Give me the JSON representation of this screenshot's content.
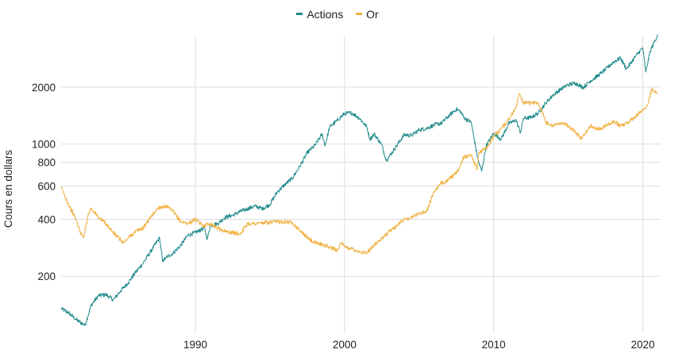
{
  "chart_data": {
    "type": "line",
    "title": "",
    "xlabel": "",
    "ylabel": "Cours en dollars",
    "y_scale": "log",
    "xlim": [
      1981,
      2021.2
    ],
    "ylim": [
      100,
      4000
    ],
    "x_ticks": [
      1990,
      2000,
      2010,
      2020
    ],
    "y_ticks": [
      200,
      400,
      600,
      800,
      1000,
      2000
    ],
    "grid": true,
    "legend": {
      "position": "top-center"
    },
    "series": [
      {
        "name": "Actions",
        "color": "#1f8a8a",
        "x": [
          1981.0,
          1981.5,
          1982.0,
          1982.6,
          1983.0,
          1983.5,
          1984.0,
          1984.5,
          1985.0,
          1985.5,
          1986.0,
          1986.5,
          1987.0,
          1987.6,
          1987.8,
          1988.0,
          1988.5,
          1989.0,
          1989.5,
          1990.0,
          1990.6,
          1990.8,
          1991.0,
          1991.5,
          1992.0,
          1992.5,
          1993.0,
          1993.5,
          1994.0,
          1994.5,
          1995.0,
          1995.5,
          1996.0,
          1996.5,
          1997.0,
          1997.5,
          1998.0,
          1998.5,
          1998.7,
          1999.0,
          1999.5,
          2000.0,
          2000.5,
          2001.0,
          2001.5,
          2001.7,
          2002.0,
          2002.5,
          2002.8,
          2003.0,
          2003.5,
          2004.0,
          2004.5,
          2005.0,
          2005.5,
          2006.0,
          2006.5,
          2007.0,
          2007.5,
          2007.8,
          2008.0,
          2008.5,
          2008.8,
          2009.0,
          2009.2,
          2009.5,
          2010.0,
          2010.5,
          2011.0,
          2011.5,
          2011.8,
          2012.0,
          2012.5,
          2013.0,
          2013.5,
          2014.0,
          2014.5,
          2015.0,
          2015.5,
          2016.0,
          2016.5,
          2017.0,
          2017.5,
          2018.0,
          2018.5,
          2018.9,
          2019.0,
          2019.5,
          2020.0,
          2020.2,
          2020.5,
          2021.0
        ],
        "values": [
          135,
          128,
          118,
          110,
          140,
          158,
          160,
          150,
          168,
          185,
          210,
          235,
          270,
          320,
          240,
          250,
          265,
          290,
          330,
          340,
          360,
          315,
          370,
          380,
          410,
          420,
          440,
          455,
          470,
          455,
          480,
          560,
          610,
          660,
          760,
          900,
          980,
          1130,
          980,
          1230,
          1330,
          1450,
          1460,
          1370,
          1230,
          1060,
          1130,
          990,
          820,
          860,
          980,
          1120,
          1110,
          1190,
          1210,
          1260,
          1290,
          1410,
          1530,
          1480,
          1380,
          1300,
          950,
          800,
          720,
          980,
          1140,
          1060,
          1280,
          1340,
          1150,
          1370,
          1380,
          1460,
          1650,
          1820,
          1950,
          2060,
          2100,
          1990,
          2160,
          2300,
          2480,
          2700,
          2850,
          2500,
          2550,
          2900,
          3230,
          2400,
          3100,
          3800
        ]
      },
      {
        "name": "Or",
        "color": "#f0b040",
        "x": [
          1981.0,
          1981.3,
          1981.6,
          1982.0,
          1982.3,
          1982.5,
          1982.8,
          1983.0,
          1983.5,
          1984.0,
          1984.5,
          1985.0,
          1985.2,
          1985.5,
          1986.0,
          1986.5,
          1987.0,
          1987.5,
          1988.0,
          1988.5,
          1989.0,
          1989.5,
          1990.0,
          1990.5,
          1991.0,
          1991.5,
          1992.0,
          1992.5,
          1993.0,
          1993.5,
          1994.0,
          1995.0,
          1996.0,
          1996.5,
          1997.0,
          1997.5,
          1998.0,
          1998.5,
          1999.0,
          1999.5,
          1999.8,
          2000.0,
          2000.5,
          2001.0,
          2001.5,
          2002.0,
          2002.5,
          2003.0,
          2003.5,
          2004.0,
          2004.5,
          2005.0,
          2005.5,
          2006.0,
          2006.5,
          2007.0,
          2007.5,
          2008.0,
          2008.5,
          2008.9,
          2009.0,
          2009.5,
          2010.0,
          2010.5,
          2011.0,
          2011.5,
          2011.7,
          2012.0,
          2012.5,
          2013.0,
          2013.3,
          2013.5,
          2014.0,
          2014.5,
          2015.0,
          2015.5,
          2015.9,
          2016.0,
          2016.5,
          2017.0,
          2017.5,
          2018.0,
          2018.5,
          2019.0,
          2019.5,
          2020.0,
          2020.3,
          2020.6,
          2021.0
        ],
        "values": [
          590,
          520,
          460,
          400,
          340,
          320,
          420,
          460,
          410,
          380,
          340,
          310,
          300,
          320,
          345,
          360,
          410,
          460,
          470,
          440,
          390,
          380,
          400,
          370,
          380,
          360,
          345,
          340,
          335,
          380,
          380,
          385,
          390,
          385,
          350,
          320,
          300,
          295,
          285,
          275,
          300,
          285,
          280,
          270,
          265,
          295,
          315,
          345,
          370,
          400,
          410,
          430,
          440,
          560,
          620,
          650,
          700,
          850,
          880,
          730,
          900,
          950,
          1100,
          1200,
          1350,
          1550,
          1850,
          1650,
          1650,
          1650,
          1450,
          1300,
          1250,
          1300,
          1250,
          1150,
          1060,
          1100,
          1250,
          1200,
          1250,
          1320,
          1250,
          1300,
          1400,
          1500,
          1600,
          1950,
          1850
        ]
      }
    ]
  }
}
